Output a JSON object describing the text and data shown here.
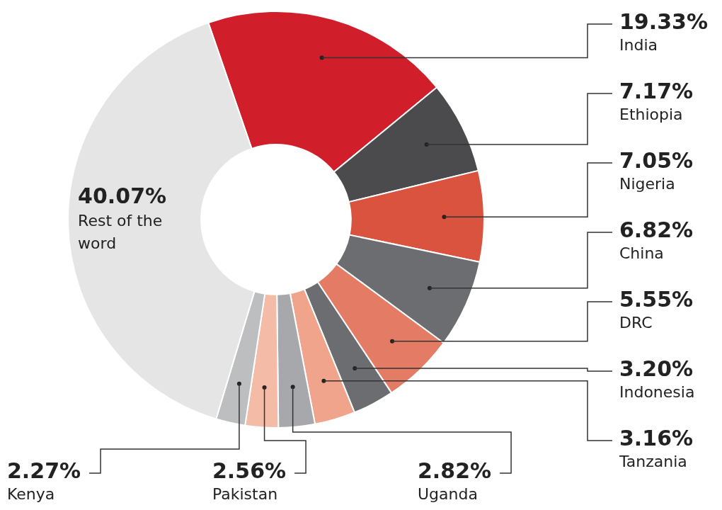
{
  "chart_data": {
    "type": "donut",
    "categories": [
      "India",
      "Ethiopia",
      "Nigeria",
      "China",
      "DRC",
      "Indonesia",
      "Tanzania",
      "Uganda",
      "Pakistan",
      "Kenya",
      "Rest of the word"
    ],
    "values": [
      19.33,
      7.17,
      7.05,
      6.82,
      5.55,
      3.2,
      3.16,
      2.82,
      2.56,
      2.27,
      40.07
    ],
    "value_labels": [
      "19.33%",
      "7.17%",
      "7.05%",
      "6.82%",
      "5.55%",
      "3.20%",
      "3.16%",
      "2.82%",
      "2.56%",
      "2.27%",
      "40.07%"
    ],
    "colors": [
      "#d01f2a",
      "#4b4b4d",
      "#d9533e",
      "#6c6d70",
      "#e47c65",
      "#6c6d70",
      "#f0a48c",
      "#a6a8ab",
      "#f4bba7",
      "#bcbec0",
      "#e5e5e6"
    ],
    "legend": false
  }
}
